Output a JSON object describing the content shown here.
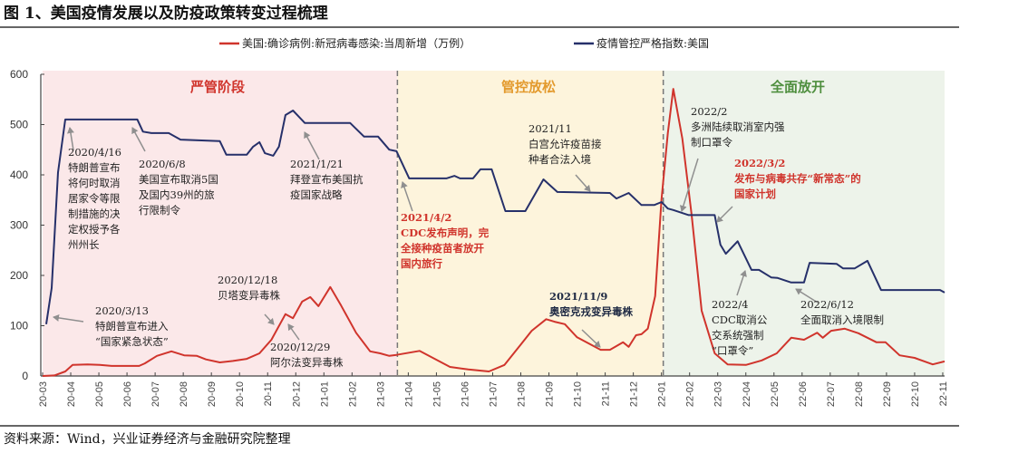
{
  "title": "图 1、美国疫情发展以及防疫政策转变过程梳理",
  "source": "资料来源：Wind，兴业证券经济与金融研究院整理",
  "chart_data": {
    "type": "line",
    "title": "图 1、美国疫情发展以及防疫政策转变过程梳理",
    "xlabel": "",
    "ylabel": "",
    "ylim": [
      0,
      600
    ],
    "yticks": [
      0,
      100,
      200,
      300,
      400,
      500,
      600
    ],
    "xtick_labels": [
      "20-03",
      "20-04",
      "20-05",
      "20-06",
      "20-07",
      "20-08",
      "20-09",
      "20-10",
      "20-11",
      "20-12",
      "21-01",
      "21-02",
      "21-03",
      "21-04",
      "21-05",
      "21-06",
      "21-07",
      "21-08",
      "21-09",
      "21-10",
      "21-11",
      "21-12",
      "22-01",
      "22-02",
      "22-03",
      "22-04",
      "22-05",
      "22-06",
      "22-07",
      "22-08",
      "22-09",
      "22-10",
      "22-11"
    ],
    "xlim": [
      "2020-03-01",
      "2022-11-01"
    ],
    "legend_position": "top",
    "grid": false,
    "phases": [
      {
        "label": "严管阶段",
        "start": "2020-03-01",
        "end": "2021-03-20",
        "bg": "#fbe8e9",
        "color": "#d0342c"
      },
      {
        "label": "管控放松",
        "start": "2021-03-20",
        "end": "2022-01-03",
        "bg": "#fdf4dc",
        "color": "#e39a2d"
      },
      {
        "label": "全面放开",
        "start": "2022-01-03",
        "end": "2022-11-03",
        "bg": "#edf3ea",
        "color": "#4f8f3f"
      }
    ],
    "series": [
      {
        "name": "美国:确诊病例:新冠病毒感染:当周新增（万例）",
        "color": "#d0342c",
        "points": [
          [
            "2020-03-01",
            0
          ],
          [
            "2020-03-14",
            1
          ],
          [
            "2020-03-26",
            9
          ],
          [
            "2020-04-03",
            22
          ],
          [
            "2020-04-19",
            23
          ],
          [
            "2020-05-02",
            22
          ],
          [
            "2020-05-15",
            20
          ],
          [
            "2020-06-14",
            20
          ],
          [
            "2020-06-20",
            25
          ],
          [
            "2020-07-03",
            40
          ],
          [
            "2020-07-19",
            49
          ],
          [
            "2020-08-02",
            41
          ],
          [
            "2020-08-16",
            40
          ],
          [
            "2020-08-26",
            33
          ],
          [
            "2020-09-10",
            27
          ],
          [
            "2020-09-24",
            30
          ],
          [
            "2020-10-09",
            34
          ],
          [
            "2020-10-23",
            45
          ],
          [
            "2020-11-05",
            72
          ],
          [
            "2020-11-20",
            123
          ],
          [
            "2020-11-28",
            115
          ],
          [
            "2020-12-08",
            148
          ],
          [
            "2020-12-17",
            157
          ],
          [
            "2020-12-26",
            139
          ],
          [
            "2021-01-08",
            177
          ],
          [
            "2021-01-20",
            140
          ],
          [
            "2021-02-05",
            86
          ],
          [
            "2021-02-19",
            49
          ],
          [
            "2021-03-01",
            45
          ],
          [
            "2021-03-11",
            40
          ],
          [
            "2021-03-19",
            42
          ],
          [
            "2021-04-13",
            50
          ],
          [
            "2021-05-16",
            18
          ],
          [
            "2021-06-05",
            13
          ],
          [
            "2021-06-27",
            9
          ],
          [
            "2021-07-14",
            22
          ],
          [
            "2021-07-30",
            58
          ],
          [
            "2021-08-13",
            90
          ],
          [
            "2021-08-29",
            113
          ],
          [
            "2021-09-07",
            108
          ],
          [
            "2021-09-18",
            103
          ],
          [
            "2021-10-01",
            77
          ],
          [
            "2021-10-27",
            52
          ],
          [
            "2021-11-06",
            52
          ],
          [
            "2021-11-20",
            67
          ],
          [
            "2021-11-26",
            58
          ],
          [
            "2021-12-04",
            81
          ],
          [
            "2021-12-10",
            83
          ],
          [
            "2021-12-17",
            94
          ],
          [
            "2021-12-25",
            159
          ],
          [
            "2022-01-01",
            351
          ],
          [
            "2022-01-08",
            483
          ],
          [
            "2022-01-14",
            571
          ],
          [
            "2022-01-24",
            472
          ],
          [
            "2022-02-03",
            321
          ],
          [
            "2022-02-13",
            130
          ],
          [
            "2022-02-26",
            45
          ],
          [
            "2022-03-12",
            23
          ],
          [
            "2022-04-01",
            22
          ],
          [
            "2022-04-18",
            31
          ],
          [
            "2022-05-04",
            45
          ],
          [
            "2022-05-20",
            76
          ],
          [
            "2022-06-03",
            72
          ],
          [
            "2022-06-17",
            86
          ],
          [
            "2022-06-23",
            76
          ],
          [
            "2022-07-02",
            90
          ],
          [
            "2022-07-17",
            94
          ],
          [
            "2022-08-01",
            85
          ],
          [
            "2022-08-21",
            67
          ],
          [
            "2022-08-31",
            67
          ],
          [
            "2022-09-15",
            41
          ],
          [
            "2022-10-01",
            36
          ],
          [
            "2022-10-21",
            23
          ],
          [
            "2022-11-03",
            29
          ]
        ]
      },
      {
        "name": "疫情管控严格指数:美国",
        "color": "#26306a",
        "points": [
          [
            "2020-03-05",
            103
          ],
          [
            "2020-03-11",
            175
          ],
          [
            "2020-03-18",
            405
          ],
          [
            "2020-03-26",
            510
          ],
          [
            "2020-06-12",
            510
          ],
          [
            "2020-06-18",
            486
          ],
          [
            "2020-06-27",
            483
          ],
          [
            "2020-07-16",
            483
          ],
          [
            "2020-07-29",
            470
          ],
          [
            "2020-09-10",
            467
          ],
          [
            "2020-09-17",
            440
          ],
          [
            "2020-10-09",
            440
          ],
          [
            "2020-10-16",
            456
          ],
          [
            "2020-10-23",
            465
          ],
          [
            "2020-10-29",
            443
          ],
          [
            "2020-11-07",
            438
          ],
          [
            "2020-11-13",
            456
          ],
          [
            "2020-11-20",
            519
          ],
          [
            "2020-11-28",
            528
          ],
          [
            "2020-12-11",
            503
          ],
          [
            "2021-01-30",
            503
          ],
          [
            "2021-02-13",
            476
          ],
          [
            "2021-02-27",
            476
          ],
          [
            "2021-03-11",
            450
          ],
          [
            "2021-03-19",
            447
          ],
          [
            "2021-04-02",
            393
          ],
          [
            "2021-05-12",
            393
          ],
          [
            "2021-05-21",
            398
          ],
          [
            "2021-05-27",
            393
          ],
          [
            "2021-06-10",
            393
          ],
          [
            "2021-06-18",
            411
          ],
          [
            "2021-06-30",
            411
          ],
          [
            "2021-07-15",
            328
          ],
          [
            "2021-08-06",
            328
          ],
          [
            "2021-08-26",
            391
          ],
          [
            "2021-09-10",
            366
          ],
          [
            "2021-11-06",
            364
          ],
          [
            "2021-11-13",
            353
          ],
          [
            "2021-11-26",
            364
          ],
          [
            "2021-12-10",
            340
          ],
          [
            "2021-12-24",
            340
          ],
          [
            "2022-01-01",
            346
          ],
          [
            "2022-01-08",
            333
          ],
          [
            "2022-01-14",
            330
          ],
          [
            "2022-01-31",
            320
          ],
          [
            "2022-02-26",
            320
          ],
          [
            "2022-03-04",
            261
          ],
          [
            "2022-03-10",
            243
          ],
          [
            "2022-03-23",
            268
          ],
          [
            "2022-04-07",
            211
          ],
          [
            "2022-04-15",
            211
          ],
          [
            "2022-04-28",
            196
          ],
          [
            "2022-05-05",
            195
          ],
          [
            "2022-05-20",
            186
          ],
          [
            "2022-06-03",
            186
          ],
          [
            "2022-06-09",
            225
          ],
          [
            "2022-07-08",
            223
          ],
          [
            "2022-07-15",
            214
          ],
          [
            "2022-07-28",
            214
          ],
          [
            "2022-08-11",
            229
          ],
          [
            "2022-08-26",
            171
          ],
          [
            "2022-10-29",
            171
          ],
          [
            "2022-11-03",
            166
          ]
        ]
      }
    ],
    "annotations": [
      {
        "lines": [
          "2020/4/16",
          "特朗普宣布",
          "将何时取消",
          "居家令等限",
          "制措施的决",
          "定权授予各",
          "州州长"
        ],
        "style": "normal"
      },
      {
        "lines": [
          "2020/6/8",
          "美国宣布取消5国",
          "及国内39州的旅",
          "行限制令"
        ],
        "style": "normal"
      },
      {
        "lines": [
          "2021/1/21",
          "拜登宣布美国抗",
          "疫国家战略"
        ],
        "style": "normal"
      },
      {
        "lines": [
          "2020/3/13",
          "特朗普宣布进入",
          "“国家紧急状态”"
        ],
        "style": "normal"
      },
      {
        "lines": [
          "2020/12/18",
          "贝塔变异毒株"
        ],
        "style": "normal"
      },
      {
        "lines": [
          "2020/12/29",
          "阿尔法变异毒株"
        ],
        "style": "normal"
      },
      {
        "lines": [
          "2021/4/2",
          "CDC发布声明，完",
          "全接种疫苗者放开",
          "国内旅行"
        ],
        "style": "red"
      },
      {
        "lines": [
          "2021/11",
          "白宫允许疫苗接",
          "种者合法入境"
        ],
        "style": "normal"
      },
      {
        "lines": [
          "2021/11/9",
          "奥密克戎变异毒株"
        ],
        "style": "dark"
      },
      {
        "lines": [
          "2022/2",
          "多洲陆续取消室内强",
          "制口罩令"
        ],
        "style": "normal"
      },
      {
        "lines": [
          "2022/3/2",
          "发布与病毒共存“新常态”的",
          "国家计划"
        ],
        "style": "red"
      },
      {
        "lines": [
          "2022/4",
          "CDC取消公",
          "交系统强制",
          "“口罩令”"
        ],
        "style": "normal"
      },
      {
        "lines": [
          "2022/6/12",
          "全面取消入境限制"
        ],
        "style": "normal"
      }
    ]
  }
}
